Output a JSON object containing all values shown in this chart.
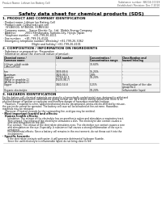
{
  "title": "Safety data sheet for chemical products (SDS)",
  "header_left": "Product Name: Lithium Ion Battery Cell",
  "header_right_line1": "Substance number: SB004-00019",
  "header_right_line2": "Established / Revision: Dec.7.2010",
  "bg_color": "#ffffff"
}
